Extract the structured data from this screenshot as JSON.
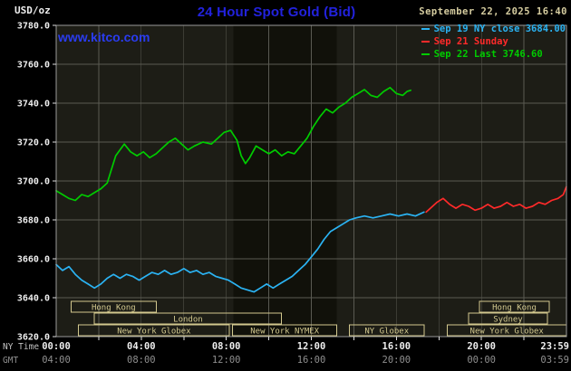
{
  "header": {
    "units": "USD/oz",
    "title": "24 Hour Spot Gold (Bid)",
    "datetime": "September 22, 2025 16:40",
    "watermark": "www.kitco.com"
  },
  "legend": [
    {
      "id": "sep19",
      "label": "Sep 19 NY close 3684.00",
      "color": "#2bb3f3"
    },
    {
      "id": "sep21",
      "label": "Sep 21 Sunday",
      "color": "#ff2a2a"
    },
    {
      "id": "sep22",
      "label": "Sep 22 Last 3746.60",
      "color": "#00cc00"
    }
  ],
  "colors": {
    "title": "#2222dd",
    "watermark": "#2a3cf0",
    "date": "#d6cda0",
    "plot_bg": "#1d1d16",
    "band": "#11110a",
    "grid": "#5a5a52",
    "border": "#9a9a9a",
    "session": "#d2c88e",
    "axis_text": "#eeeeee",
    "axis_text_dim": "#8f8f8f"
  },
  "chart_data": {
    "type": "line",
    "title": "24 Hour Spot Gold (Bid)",
    "ylabel": "USD/oz",
    "timezone_rows": {
      "ny": "NY Time",
      "gmt": "GMT"
    },
    "ylim": [
      3620,
      3780
    ],
    "xlim_hours": [
      0,
      24
    ],
    "y_ticks": [
      {
        "value": 3780,
        "label": "3780.0"
      },
      {
        "value": 3760,
        "label": "3760.0"
      },
      {
        "value": 3740,
        "label": "3740.0"
      },
      {
        "value": 3720,
        "label": "3720.0"
      },
      {
        "value": 3700,
        "label": "3700.0"
      },
      {
        "value": 3680,
        "label": "3680.0"
      },
      {
        "value": 3660,
        "label": "3660.0"
      },
      {
        "value": 3640,
        "label": "3640.0"
      },
      {
        "value": 3620,
        "label": "3620.0"
      }
    ],
    "x_ticks": [
      {
        "hour": 0,
        "ny": "00:00",
        "gmt": "04:00"
      },
      {
        "hour": 4,
        "ny": "04:00",
        "gmt": "08:00"
      },
      {
        "hour": 8,
        "ny": "08:00",
        "gmt": "12:00"
      },
      {
        "hour": 12,
        "ny": "12:00",
        "gmt": "16:00"
      },
      {
        "hour": 16,
        "ny": "16:00",
        "gmt": "20:00"
      },
      {
        "hour": 20,
        "ny": "20:00",
        "gmt": "00:00"
      },
      {
        "hour": 23.983,
        "ny": "23:59",
        "gmt": "03:59"
      }
    ],
    "nymex_band_hours": [
      8.33,
      13.2
    ],
    "sessions": [
      {
        "id": "hong-kong-am",
        "label": "Hong Kong",
        "row": 0,
        "start": 0.7,
        "end": 4.7
      },
      {
        "id": "hong-kong-pm",
        "label": "Hong Kong",
        "row": 0,
        "start": 19.9,
        "end": 23.2
      },
      {
        "id": "london",
        "label": "London",
        "row": 1,
        "start": 1.8,
        "end": 10.6
      },
      {
        "id": "sydney",
        "label": "Sydney",
        "row": 1,
        "start": 19.4,
        "end": 23.1
      },
      {
        "id": "ny-globex-early",
        "label": "New York Globex",
        "row": 2,
        "start": 1.05,
        "end": 8.15
      },
      {
        "id": "ny-nymex",
        "label": "New York NYMEX",
        "row": 2,
        "start": 8.3,
        "end": 13.2
      },
      {
        "id": "ny-globex-mid",
        "label": "NY Globex",
        "row": 2,
        "start": 13.8,
        "end": 17.3
      },
      {
        "id": "ny-globex-late",
        "label": "New York Globex",
        "row": 2,
        "start": 18.4,
        "end": 23.99
      }
    ],
    "series": [
      {
        "id": "sep19",
        "name": "Sep 19 NY close",
        "color": "#2bb3f3",
        "close": 3684.0,
        "points": [
          [
            0,
            3657
          ],
          [
            0.3,
            3654
          ],
          [
            0.6,
            3656
          ],
          [
            0.9,
            3652
          ],
          [
            1.2,
            3649
          ],
          [
            1.5,
            3647
          ],
          [
            1.8,
            3645
          ],
          [
            2.1,
            3647
          ],
          [
            2.4,
            3650
          ],
          [
            2.7,
            3652
          ],
          [
            3.0,
            3650
          ],
          [
            3.3,
            3652
          ],
          [
            3.6,
            3651
          ],
          [
            3.9,
            3649
          ],
          [
            4.2,
            3651
          ],
          [
            4.5,
            3653
          ],
          [
            4.8,
            3652
          ],
          [
            5.1,
            3654
          ],
          [
            5.4,
            3652
          ],
          [
            5.7,
            3653
          ],
          [
            6.0,
            3655
          ],
          [
            6.3,
            3653
          ],
          [
            6.6,
            3654
          ],
          [
            6.9,
            3652
          ],
          [
            7.2,
            3653
          ],
          [
            7.5,
            3651
          ],
          [
            7.8,
            3650
          ],
          [
            8.1,
            3649
          ],
          [
            8.4,
            3647
          ],
          [
            8.7,
            3645
          ],
          [
            9.0,
            3644
          ],
          [
            9.3,
            3643
          ],
          [
            9.6,
            3645
          ],
          [
            9.9,
            3647
          ],
          [
            10.2,
            3645
          ],
          [
            10.5,
            3647
          ],
          [
            10.8,
            3649
          ],
          [
            11.1,
            3651
          ],
          [
            11.4,
            3654
          ],
          [
            11.7,
            3657
          ],
          [
            12.0,
            3661
          ],
          [
            12.3,
            3665
          ],
          [
            12.6,
            3670
          ],
          [
            12.9,
            3674
          ],
          [
            13.2,
            3676
          ],
          [
            13.5,
            3678
          ],
          [
            13.8,
            3680
          ],
          [
            14.1,
            3681
          ],
          [
            14.5,
            3682
          ],
          [
            14.9,
            3681
          ],
          [
            15.3,
            3682
          ],
          [
            15.7,
            3683
          ],
          [
            16.1,
            3682
          ],
          [
            16.5,
            3683
          ],
          [
            16.9,
            3682
          ],
          [
            17.3,
            3684
          ]
        ]
      },
      {
        "id": "sep21",
        "name": "Sep 21 Sunday",
        "color": "#ff2a2a",
        "points": [
          [
            17.4,
            3684
          ],
          [
            17.6,
            3686
          ],
          [
            17.9,
            3689
          ],
          [
            18.2,
            3691
          ],
          [
            18.5,
            3688
          ],
          [
            18.8,
            3686
          ],
          [
            19.1,
            3688
          ],
          [
            19.4,
            3687
          ],
          [
            19.7,
            3685
          ],
          [
            20.0,
            3686
          ],
          [
            20.3,
            3688
          ],
          [
            20.6,
            3686
          ],
          [
            20.9,
            3687
          ],
          [
            21.2,
            3689
          ],
          [
            21.5,
            3687
          ],
          [
            21.8,
            3688
          ],
          [
            22.1,
            3686
          ],
          [
            22.4,
            3687
          ],
          [
            22.7,
            3689
          ],
          [
            23.0,
            3688
          ],
          [
            23.3,
            3690
          ],
          [
            23.6,
            3691
          ],
          [
            23.85,
            3693
          ],
          [
            23.99,
            3697
          ]
        ]
      },
      {
        "id": "sep22",
        "name": "Sep 22",
        "color": "#00cc00",
        "last": 3746.6,
        "points": [
          [
            0,
            3695
          ],
          [
            0.3,
            3693
          ],
          [
            0.6,
            3691
          ],
          [
            0.9,
            3690
          ],
          [
            1.2,
            3693
          ],
          [
            1.5,
            3692
          ],
          [
            1.8,
            3694
          ],
          [
            2.1,
            3696
          ],
          [
            2.4,
            3699
          ],
          [
            2.6,
            3706
          ],
          [
            2.8,
            3713
          ],
          [
            3.0,
            3716
          ],
          [
            3.2,
            3719
          ],
          [
            3.5,
            3715
          ],
          [
            3.8,
            3713
          ],
          [
            4.1,
            3715
          ],
          [
            4.4,
            3712
          ],
          [
            4.7,
            3714
          ],
          [
            5.0,
            3717
          ],
          [
            5.3,
            3720
          ],
          [
            5.6,
            3722
          ],
          [
            5.9,
            3719
          ],
          [
            6.2,
            3716
          ],
          [
            6.5,
            3718
          ],
          [
            6.9,
            3720
          ],
          [
            7.3,
            3719
          ],
          [
            7.6,
            3722
          ],
          [
            7.9,
            3725
          ],
          [
            8.2,
            3726
          ],
          [
            8.5,
            3721
          ],
          [
            8.7,
            3713
          ],
          [
            8.9,
            3709
          ],
          [
            9.1,
            3712
          ],
          [
            9.4,
            3718
          ],
          [
            9.7,
            3716
          ],
          [
            10.0,
            3714
          ],
          [
            10.3,
            3716
          ],
          [
            10.6,
            3713
          ],
          [
            10.9,
            3715
          ],
          [
            11.2,
            3714
          ],
          [
            11.5,
            3718
          ],
          [
            11.8,
            3722
          ],
          [
            12.1,
            3728
          ],
          [
            12.4,
            3733
          ],
          [
            12.7,
            3737
          ],
          [
            13.0,
            3735
          ],
          [
            13.3,
            3738
          ],
          [
            13.6,
            3740
          ],
          [
            13.9,
            3743
          ],
          [
            14.2,
            3745
          ],
          [
            14.5,
            3747
          ],
          [
            14.8,
            3744
          ],
          [
            15.1,
            3743
          ],
          [
            15.4,
            3746
          ],
          [
            15.7,
            3748
          ],
          [
            16.0,
            3745
          ],
          [
            16.3,
            3744
          ],
          [
            16.5,
            3746
          ],
          [
            16.67,
            3746.6
          ]
        ]
      }
    ]
  }
}
